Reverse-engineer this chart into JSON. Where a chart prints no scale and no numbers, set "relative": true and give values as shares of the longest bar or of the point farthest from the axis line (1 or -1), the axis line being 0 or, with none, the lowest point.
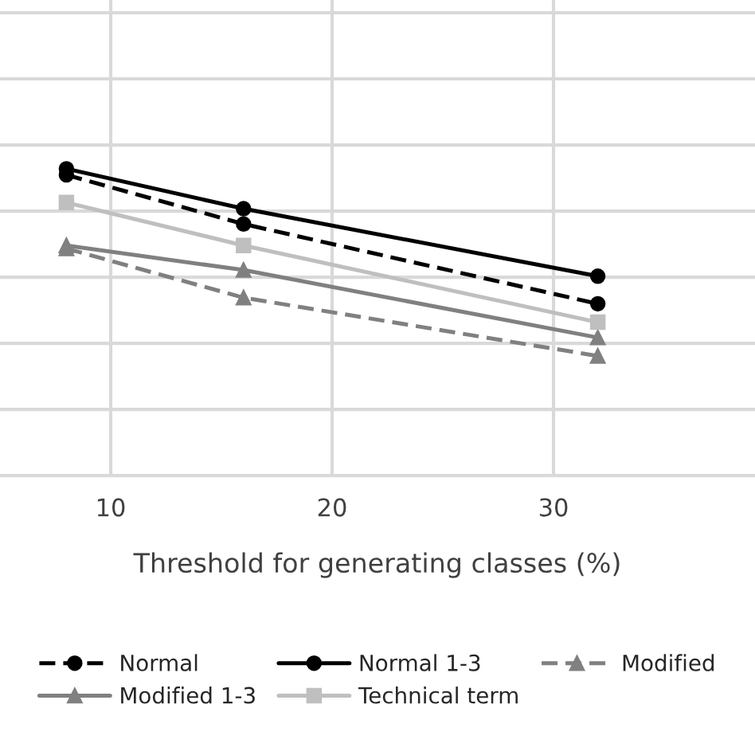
{
  "chart_data": {
    "type": "line",
    "xlabel": "Threshold for generating classes (%)",
    "relative": true,
    "x": [
      8,
      16,
      32
    ],
    "xlim": [
      5,
      39.1
    ],
    "xticks": [
      10,
      20,
      30
    ],
    "grid": true,
    "legend": "bottom",
    "series": [
      {
        "name": "Normal",
        "color": "#000000",
        "line_style": "dashed",
        "marker": "circle",
        "values": [
          0.98,
          0.82,
          0.56
        ]
      },
      {
        "name": "Normal 1-3",
        "color": "#000000",
        "line_style": "solid",
        "marker": "circle",
        "values": [
          1,
          0.87,
          0.65
        ]
      },
      {
        "name": "Modified",
        "color": "#808080",
        "line_style": "dashed",
        "marker": "triangle",
        "values": [
          0.74,
          0.58,
          0.39
        ]
      },
      {
        "name": "Modified 1-3",
        "color": "#808080",
        "line_style": "solid",
        "marker": "triangle",
        "values": [
          0.75,
          0.67,
          0.45
        ]
      },
      {
        "name": "Technical term",
        "color": "#bfbfbf",
        "line_style": "solid",
        "marker": "square",
        "values": [
          0.89,
          0.75,
          0.5
        ]
      }
    ]
  }
}
